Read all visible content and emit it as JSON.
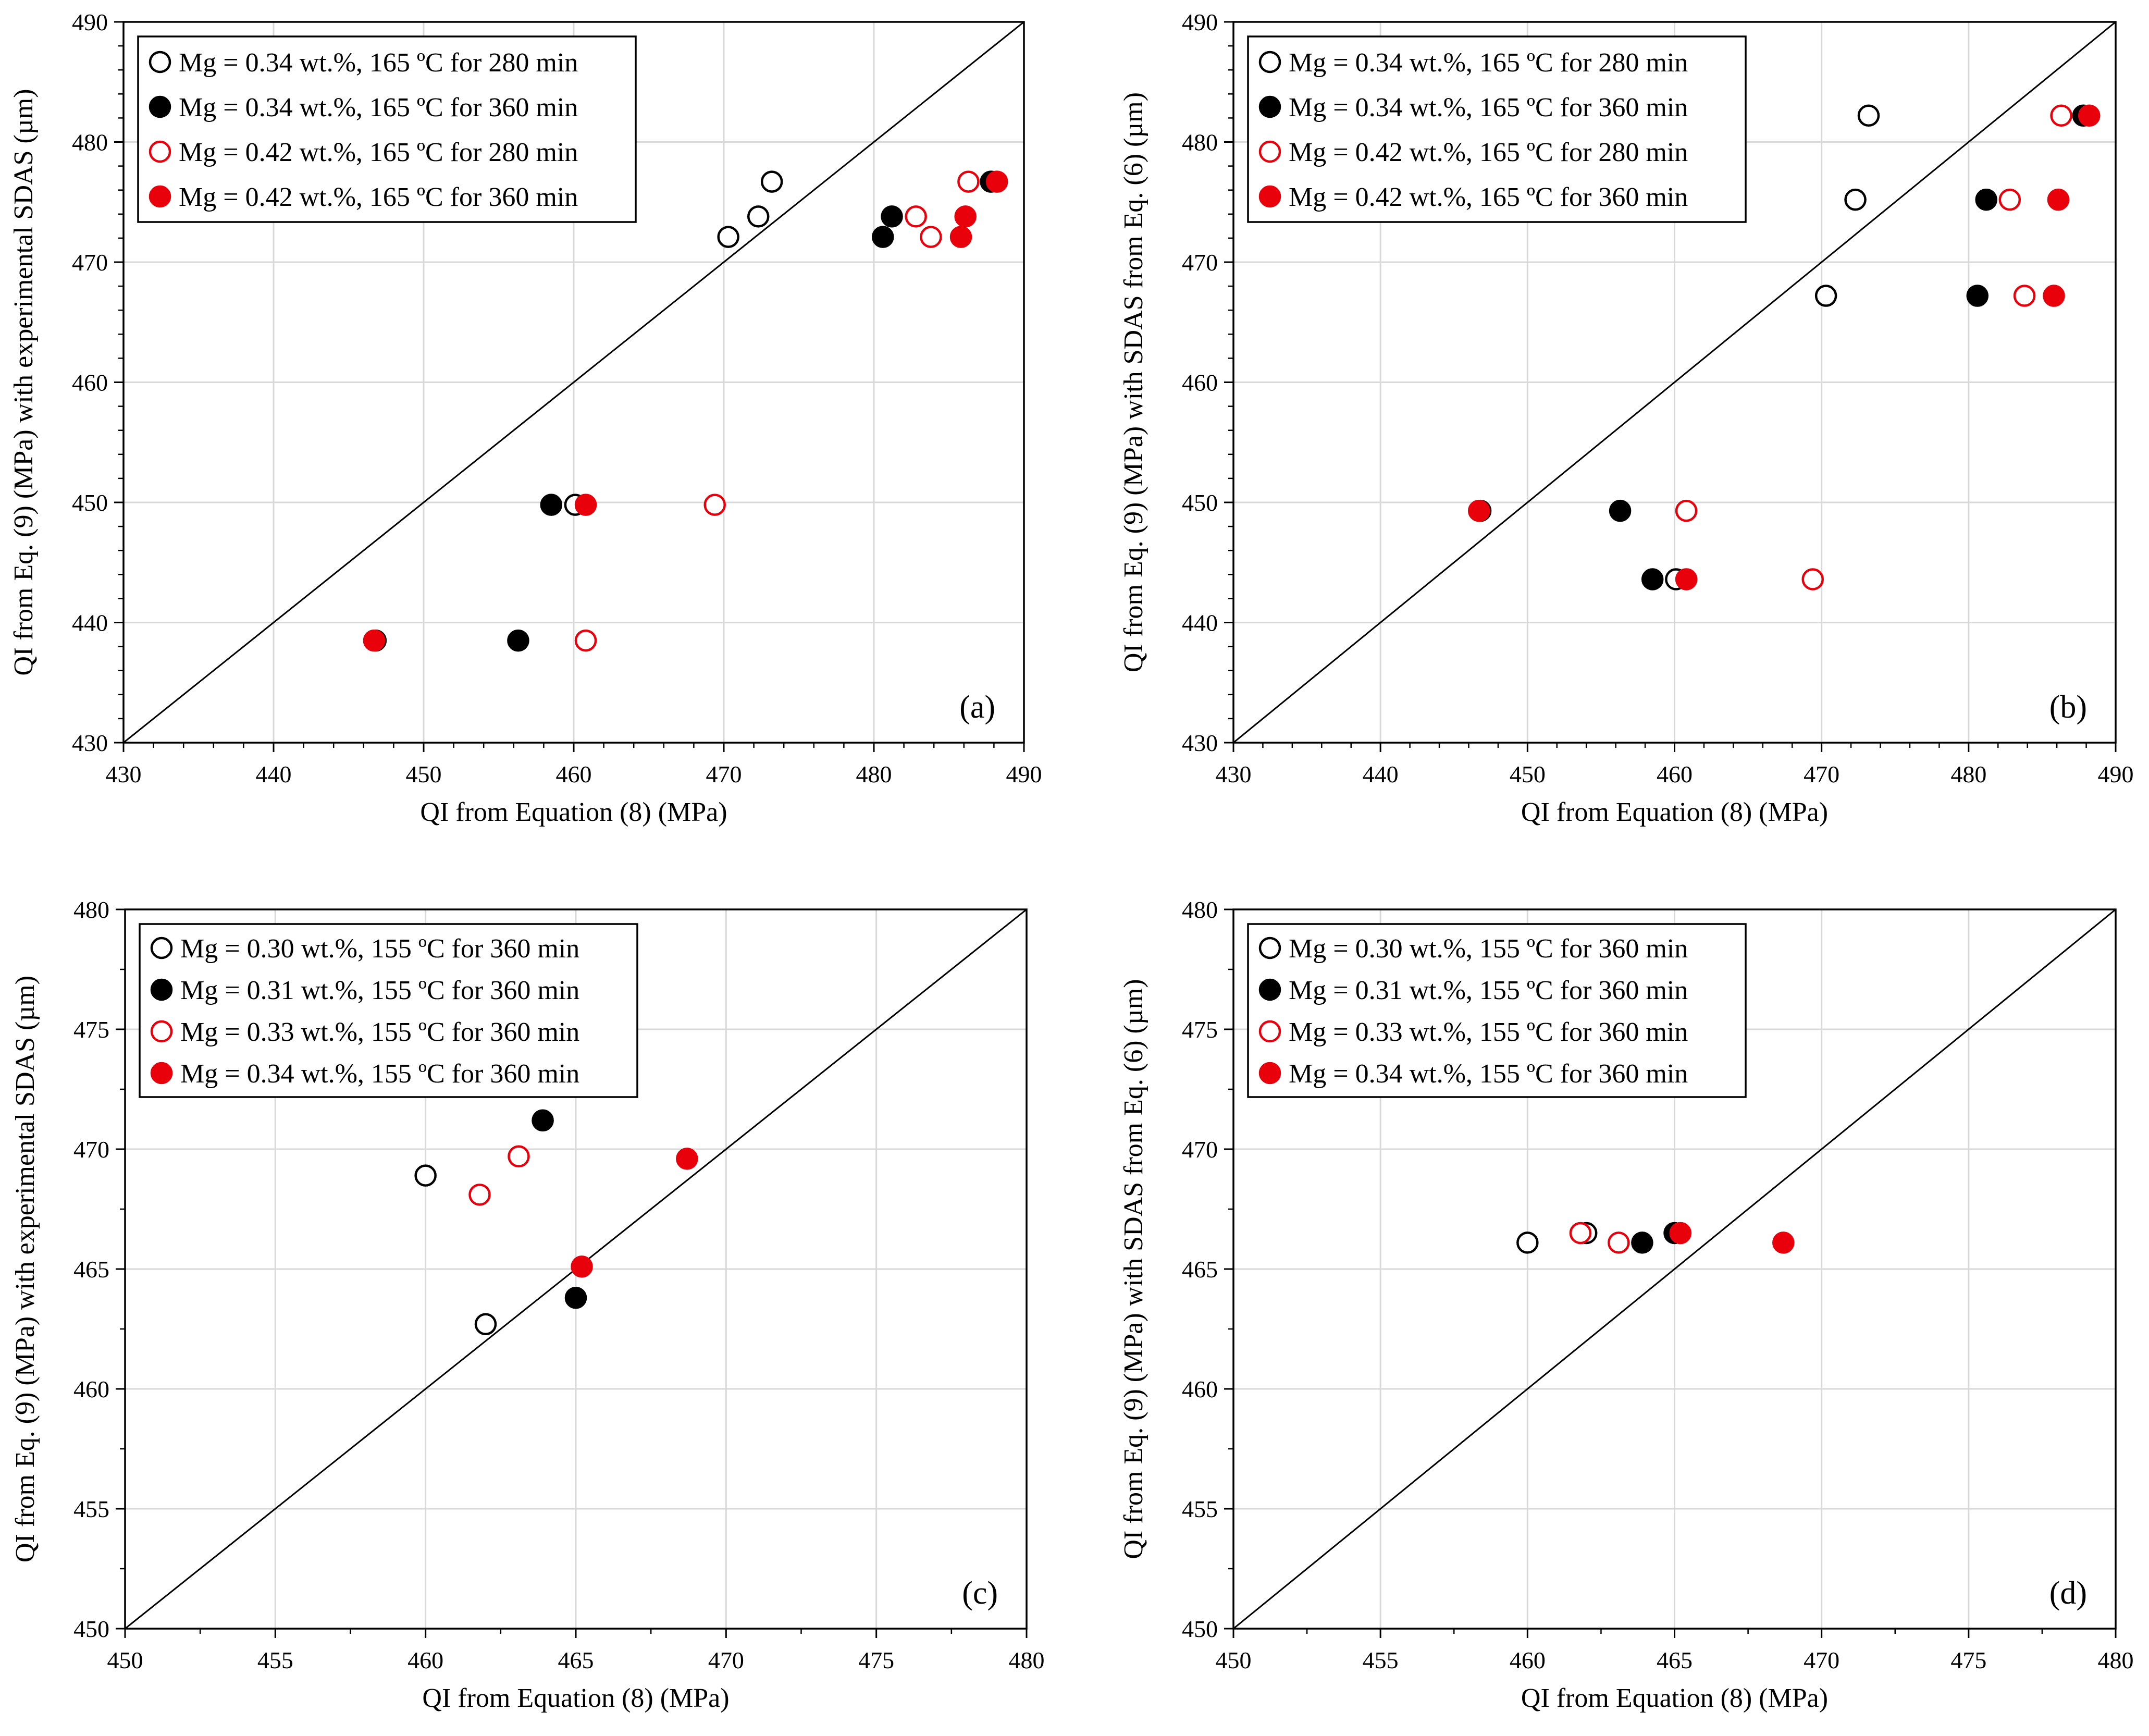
{
  "chart_data": [
    {
      "type": "scatter",
      "panel_label": "(a)",
      "xlabel": "QI from Equation (8) (MPa)",
      "ylabel": "QI from Eq. (9) (MPa) with experimental SDAS (µm)",
      "xlim": [
        430,
        490
      ],
      "ylim": [
        430,
        490
      ],
      "xticks": [
        430,
        440,
        450,
        460,
        470,
        480,
        490
      ],
      "yticks": [
        430,
        440,
        450,
        460,
        470,
        480,
        490
      ],
      "grid": true,
      "identity_line": true,
      "legend_position": "top-left",
      "series": [
        {
          "name": "Mg = 0.34 wt.%, 165 ºC for 280 min",
          "color": "#000000",
          "filled": false,
          "points": [
            [
              473.2,
              476.7
            ],
            [
              472.3,
              473.8
            ],
            [
              470.3,
              472.1
            ],
            [
              460.1,
              449.8
            ],
            [
              446.8,
              438.5
            ]
          ]
        },
        {
          "name": "Mg = 0.34 wt.%, 165 ºC for 360 min",
          "color": "#000000",
          "filled": true,
          "points": [
            [
              487.8,
              476.7
            ],
            [
              481.2,
              473.8
            ],
            [
              480.6,
              472.1
            ],
            [
              458.5,
              449.8
            ],
            [
              456.3,
              438.5
            ]
          ]
        },
        {
          "name": "Mg = 0.42 wt.%, 165 ºC for 280 min",
          "color": "#e8000b",
          "filled": false,
          "points": [
            [
              486.3,
              476.7
            ],
            [
              482.8,
              473.8
            ],
            [
              483.8,
              472.1
            ],
            [
              469.4,
              449.8
            ],
            [
              460.8,
              438.5
            ]
          ]
        },
        {
          "name": "Mg = 0.42 wt.%, 165 ºC for 360 min",
          "color": "#e8000b",
          "filled": true,
          "points": [
            [
              488.2,
              476.7
            ],
            [
              486.1,
              473.8
            ],
            [
              485.8,
              472.1
            ],
            [
              460.8,
              449.8
            ],
            [
              446.7,
              438.5
            ]
          ]
        }
      ]
    },
    {
      "type": "scatter",
      "panel_label": "(b)",
      "xlabel": "QI from Equation (8) (MPa)",
      "ylabel": "QI from Eq. (9) (MPa) with SDAS from Eq. (6) (µm)",
      "xlim": [
        430,
        490
      ],
      "ylim": [
        430,
        490
      ],
      "xticks": [
        430,
        440,
        450,
        460,
        470,
        480,
        490
      ],
      "yticks": [
        430,
        440,
        450,
        460,
        470,
        480,
        490
      ],
      "grid": true,
      "identity_line": true,
      "legend_position": "top-left",
      "series": [
        {
          "name": "Mg = 0.34 wt.%, 165 ºC for 280 min",
          "color": "#000000",
          "filled": false,
          "points": [
            [
              473.2,
              482.2
            ],
            [
              472.3,
              475.2
            ],
            [
              470.3,
              467.2
            ],
            [
              460.1,
              443.6
            ],
            [
              446.8,
              449.3
            ]
          ]
        },
        {
          "name": "Mg = 0.34 wt.%, 165 ºC for 360 min",
          "color": "#000000",
          "filled": true,
          "points": [
            [
              487.8,
              482.2
            ],
            [
              481.2,
              475.2
            ],
            [
              480.6,
              467.2
            ],
            [
              458.5,
              443.6
            ],
            [
              456.3,
              449.3
            ]
          ]
        },
        {
          "name": "Mg = 0.42 wt.%, 165 ºC for 280 min",
          "color": "#e8000b",
          "filled": false,
          "points": [
            [
              486.3,
              482.2
            ],
            [
              482.8,
              475.2
            ],
            [
              483.8,
              467.2
            ],
            [
              469.4,
              443.6
            ],
            [
              460.8,
              449.3
            ]
          ]
        },
        {
          "name": "Mg = 0.42 wt.%, 165 ºC for 360 min",
          "color": "#e8000b",
          "filled": true,
          "points": [
            [
              488.2,
              482.2
            ],
            [
              486.1,
              475.2
            ],
            [
              485.8,
              467.2
            ],
            [
              460.8,
              443.6
            ],
            [
              446.7,
              449.3
            ]
          ]
        }
      ]
    },
    {
      "type": "scatter",
      "panel_label": "(c)",
      "xlabel": "QI from Equation (8) (MPa)",
      "ylabel": "QI from Eq. (9) (MPa) with experimental SDAS (µm)",
      "xlim": [
        450,
        480
      ],
      "ylim": [
        450,
        480
      ],
      "xticks": [
        450,
        455,
        460,
        465,
        470,
        475,
        480
      ],
      "yticks": [
        450,
        455,
        460,
        465,
        470,
        475,
        480
      ],
      "grid": true,
      "identity_line": true,
      "legend_position": "top-left",
      "series": [
        {
          "name": "Mg = 0.30 wt.%, 155 ºC for 360 min",
          "color": "#000000",
          "filled": false,
          "points": [
            [
              460.0,
              468.9
            ],
            [
              462.0,
              462.7
            ]
          ]
        },
        {
          "name": "Mg = 0.31 wt.%, 155 ºC for 360 min",
          "color": "#000000",
          "filled": true,
          "points": [
            [
              463.9,
              471.2
            ],
            [
              465.0,
              463.8
            ]
          ]
        },
        {
          "name": "Mg = 0.33 wt.%, 155 ºC for 360 min",
          "color": "#e8000b",
          "filled": false,
          "points": [
            [
              461.8,
              468.1
            ],
            [
              463.1,
              469.7
            ]
          ]
        },
        {
          "name": "Mg = 0.34 wt.%, 155 ºC for 360 min",
          "color": "#e8000b",
          "filled": true,
          "points": [
            [
              468.7,
              469.6
            ],
            [
              465.2,
              465.1
            ]
          ]
        }
      ]
    },
    {
      "type": "scatter",
      "panel_label": "(d)",
      "xlabel": "QI from Equation (8) (MPa)",
      "ylabel": "QI from Eq. (9) (MPa) with SDAS from Eq. (6) (µm)",
      "xlim": [
        450,
        480
      ],
      "ylim": [
        450,
        480
      ],
      "xticks": [
        450,
        455,
        460,
        465,
        470,
        475,
        480
      ],
      "yticks": [
        450,
        455,
        460,
        465,
        470,
        475,
        480
      ],
      "grid": true,
      "identity_line": true,
      "legend_position": "top-left",
      "series": [
        {
          "name": "Mg = 0.30 wt.%, 155 ºC for 360 min",
          "color": "#000000",
          "filled": false,
          "points": [
            [
              460.0,
              466.1
            ],
            [
              462.0,
              466.5
            ]
          ]
        },
        {
          "name": "Mg = 0.31 wt.%, 155 ºC for 360 min",
          "color": "#000000",
          "filled": true,
          "points": [
            [
              463.9,
              466.1
            ],
            [
              465.0,
              466.5
            ]
          ]
        },
        {
          "name": "Mg = 0.33 wt.%, 155 ºC for 360 min",
          "color": "#e8000b",
          "filled": false,
          "points": [
            [
              461.8,
              466.5
            ],
            [
              463.1,
              466.1
            ]
          ]
        },
        {
          "name": "Mg = 0.34 wt.%, 155 ºC for 360 min",
          "color": "#e8000b",
          "filled": true,
          "points": [
            [
              468.7,
              466.1
            ],
            [
              465.2,
              466.5
            ]
          ]
        }
      ]
    }
  ]
}
